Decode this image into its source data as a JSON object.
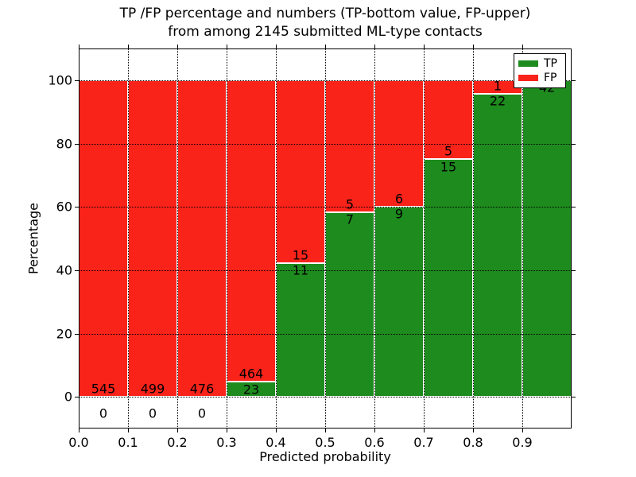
{
  "chart_data": {
    "type": "bar",
    "stacked": true,
    "title_line1": "TP /FP percentage and numbers (TP-bottom value, FP-upper)",
    "title_line2": "from among 2145 submitted ML-type contacts",
    "xlabel": "Predicted probability",
    "ylabel": "Percentage",
    "xlim": [
      0.0,
      1.0
    ],
    "ylim": [
      -10,
      110
    ],
    "grid": true,
    "grid_style": "dotted",
    "legend_position": "upper right",
    "colors": {
      "tp": "#1e8b1e",
      "fp": "#fa231a",
      "bar_edge": "#ffffff",
      "background": "#ffffff"
    },
    "legend": [
      {
        "label": "TP",
        "color": "#1e8b1e"
      },
      {
        "label": "FP",
        "color": "#fa231a"
      }
    ],
    "xticks": {
      "values": [
        0.0,
        0.1,
        0.2,
        0.3,
        0.4,
        0.5,
        0.6,
        0.7,
        0.8,
        0.9
      ],
      "labels": [
        "0.0",
        "0.1",
        "0.2",
        "0.3",
        "0.4",
        "0.5",
        "0.6",
        "0.7",
        "0.8",
        "0.9"
      ]
    },
    "yticks": {
      "values": [
        0,
        20,
        40,
        60,
        80,
        100
      ],
      "labels": [
        "0",
        "20",
        "40",
        "60",
        "80",
        "100"
      ]
    },
    "bins": [
      {
        "range": [
          0.0,
          0.1
        ],
        "tp": 0,
        "fp": 545,
        "tp_pct": 0.0,
        "show_fp_label": true
      },
      {
        "range": [
          0.1,
          0.2
        ],
        "tp": 0,
        "fp": 499,
        "tp_pct": 0.0,
        "show_fp_label": true
      },
      {
        "range": [
          0.2,
          0.3
        ],
        "tp": 0,
        "fp": 476,
        "tp_pct": 0.0,
        "show_fp_label": true
      },
      {
        "range": [
          0.3,
          0.4
        ],
        "tp": 23,
        "fp": 464,
        "tp_pct": 4.72,
        "show_fp_label": true
      },
      {
        "range": [
          0.4,
          0.5
        ],
        "tp": 11,
        "fp": 15,
        "tp_pct": 42.31,
        "show_fp_label": true
      },
      {
        "range": [
          0.5,
          0.6
        ],
        "tp": 7,
        "fp": 5,
        "tp_pct": 58.33,
        "show_fp_label": true
      },
      {
        "range": [
          0.6,
          0.7
        ],
        "tp": 9,
        "fp": 6,
        "tp_pct": 60.0,
        "show_fp_label": true
      },
      {
        "range": [
          0.7,
          0.8
        ],
        "tp": 15,
        "fp": 5,
        "tp_pct": 75.0,
        "show_fp_label": true
      },
      {
        "range": [
          0.8,
          0.9
        ],
        "tp": 22,
        "fp": 1,
        "tp_pct": 95.65,
        "show_fp_label": true
      },
      {
        "range": [
          0.9,
          1.0
        ],
        "tp": 42,
        "fp": 0,
        "tp_pct": 100.0,
        "show_fp_label": false
      }
    ]
  }
}
